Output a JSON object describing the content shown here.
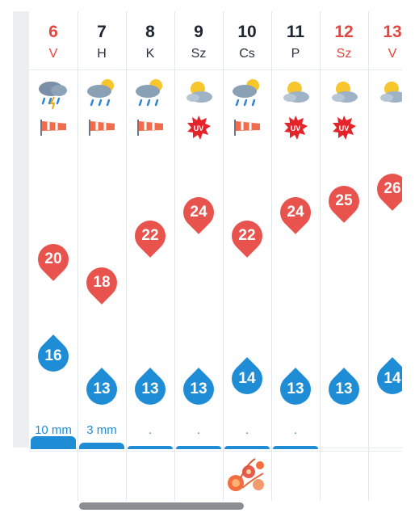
{
  "days": [
    {
      "num": "6",
      "name": "V",
      "weekend": true,
      "weather": "rain-thunder",
      "wind": true,
      "uv": false,
      "max": "20",
      "min": "16",
      "precip": "10 mm",
      "precip_level": "high"
    },
    {
      "num": "7",
      "name": "H",
      "weekend": false,
      "weather": "sun-rain",
      "wind": true,
      "uv": false,
      "max": "18",
      "min": "13",
      "precip": "3 mm",
      "precip_level": "medium"
    },
    {
      "num": "8",
      "name": "K",
      "weekend": false,
      "weather": "sun-rain",
      "wind": true,
      "uv": false,
      "max": "22",
      "min": "13",
      "precip": ".",
      "precip_level": "low"
    },
    {
      "num": "9",
      "name": "Sz",
      "weekend": false,
      "weather": "sun-cloud",
      "wind": false,
      "uv": true,
      "max": "24",
      "min": "13",
      "precip": ".",
      "precip_level": "low"
    },
    {
      "num": "10",
      "name": "Cs",
      "weekend": false,
      "weather": "sun-rain",
      "wind": true,
      "uv": false,
      "max": "22",
      "min": "14",
      "precip": ".",
      "precip_level": "low"
    },
    {
      "num": "11",
      "name": "P",
      "weekend": false,
      "weather": "sun-cloud",
      "wind": false,
      "uv": true,
      "max": "24",
      "min": "13",
      "precip": ".",
      "precip_level": "low"
    },
    {
      "num": "12",
      "name": "Sz",
      "weekend": true,
      "weather": "sun-cloud",
      "wind": false,
      "uv": true,
      "max": "25",
      "min": "13",
      "precip": "",
      "precip_level": "none"
    },
    {
      "num": "13",
      "name": "V",
      "weekend": true,
      "weather": "sun-cloud",
      "wind": false,
      "uv": false,
      "max": "26",
      "min": "14",
      "precip": "",
      "precip_level": "none"
    }
  ],
  "uv_label": "UV",
  "colors": {
    "weekend": "#e0473f",
    "max_pin": "#e8534d",
    "min_drop": "#1f8cd6",
    "precip": "#1f8cd6"
  },
  "icons": [
    "rain-thunder-cloud-icon",
    "sun-rain-cloud-icon",
    "sun-cloud-icon",
    "windsock-icon",
    "uv-badge-icon",
    "flower-nameday-icon"
  ]
}
